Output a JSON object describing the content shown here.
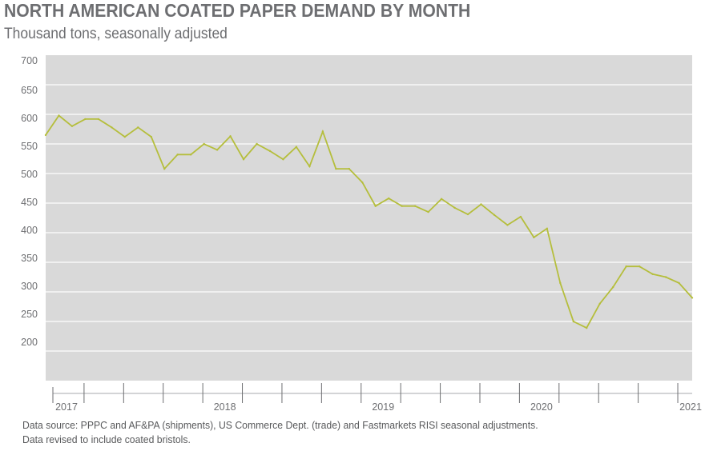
{
  "header": {
    "title": "NORTH AMERICAN COATED PAPER DEMAND BY MONTH",
    "subtitle": "Thousand tons, seasonally adjusted"
  },
  "footer": {
    "source_line1": "Data source: PPPC and AF&PA (shipments), US Commerce Dept. (trade) and Fastmarkets RISI seasonal adjustments.",
    "source_line2": "Data revised to include coated bristols."
  },
  "colors": {
    "line": "#b5be3c",
    "plot_background": "#d9d9d9",
    "gridline": "#ffffff",
    "text": "#6d6e71"
  },
  "chart_data": {
    "type": "line",
    "title": "NORTH AMERICAN COATED PAPER DEMAND BY MONTH",
    "subtitle": "Thousand tons, seasonally adjusted",
    "xlabel": "",
    "ylabel": "",
    "ylim": [
      150,
      700
    ],
    "yticks": [
      200,
      250,
      300,
      350,
      400,
      450,
      500,
      550,
      600,
      650,
      700
    ],
    "grid": true,
    "legend": "none",
    "x_tick_labels": [
      "2017",
      "2018",
      "2019",
      "2020",
      "2021"
    ],
    "x_start": "2017-01",
    "series": [
      {
        "values": [
          565,
          598,
          580,
          592,
          592,
          578,
          562,
          578,
          562,
          508,
          532,
          532,
          550,
          540,
          563,
          524,
          550,
          538,
          524,
          545,
          512,
          571,
          508,
          508,
          485,
          445,
          458,
          445,
          445,
          435,
          457,
          442,
          431,
          448,
          430,
          413,
          427,
          392,
          407,
          315,
          250,
          239,
          280,
          308,
          343,
          343,
          330,
          325,
          315,
          290
        ]
      }
    ]
  }
}
